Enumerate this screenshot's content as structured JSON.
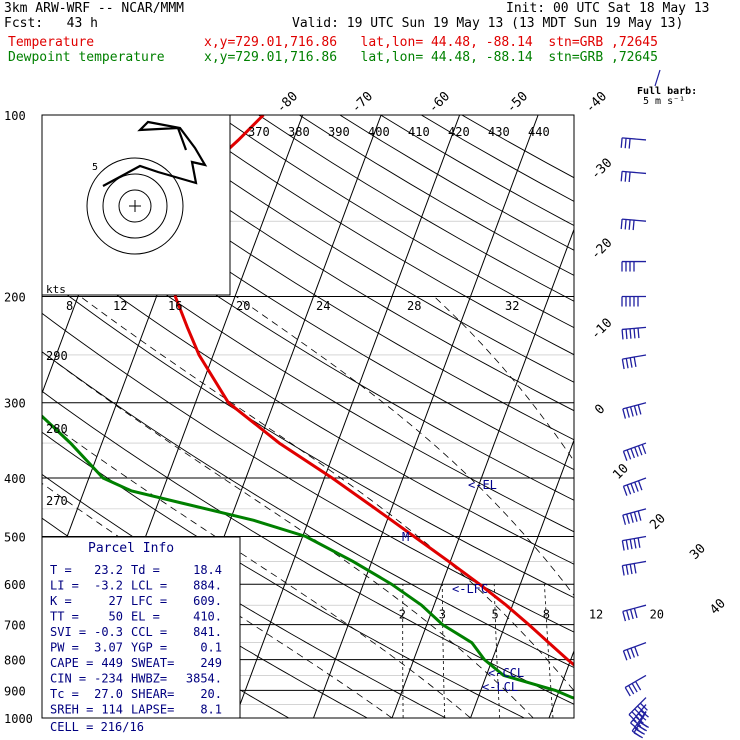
{
  "header": {
    "model": "3km ARW-WRF -- NCAR/MMM",
    "init": "Init: 00 UTC Sat 18 May 13",
    "fcst": "Fcst:   43 h",
    "valid": "Valid: 19 UTC Sun 19 May 13 (13 MDT Sun 19 May 13)",
    "temp_label": "Temperature",
    "dew_label": "Dewpoint temperature",
    "loc": "x,y=729.01,716.86   lat,lon= 44.48, -88.14  stn=GRB ,72645"
  },
  "colors": {
    "temperature": "#e00000",
    "dewpoint": "#008000",
    "wind": "#2020a0",
    "fill_info": "#000080"
  },
  "chart_data": {
    "type": "line",
    "title": "",
    "ylabel": "",
    "pressure_ticks": [
      100,
      200,
      300,
      400,
      500,
      600,
      700,
      800,
      900,
      1000
    ],
    "temp_axis_labels": [
      -80,
      -70,
      -60,
      -50,
      -40,
      -30,
      -20,
      -10,
      0,
      10,
      20,
      30,
      40
    ],
    "theta_labels": [
      370,
      380,
      390,
      400,
      410,
      420,
      430,
      440
    ],
    "wind_speed_labels": [
      8,
      12,
      16,
      20,
      24,
      28,
      32
    ],
    "wind_speed_unit": "kts",
    "theta_side_labels": [
      290,
      280,
      270
    ],
    "mixing_ratio_labels": [
      2,
      3,
      5,
      8,
      12,
      20
    ],
    "series": [
      {
        "name": "Temperature",
        "p": [
          1000,
          970,
          950,
          925,
          900,
          875,
          850,
          800,
          750,
          700,
          650,
          600,
          550,
          500,
          450,
          400,
          350,
          300,
          250,
          225,
          200,
          175,
          150,
          125,
          110,
          100
        ],
        "t": [
          23.2,
          21.0,
          19.0,
          17.2,
          15.6,
          14.2,
          12.8,
          9.6,
          6.4,
          3.0,
          -0.8,
          -5.2,
          -10.2,
          -15.8,
          -22.0,
          -29.0,
          -37.4,
          -45.8,
          -51.8,
          -54.6,
          -57.6,
          -58.6,
          -60.6,
          -60.0,
          -57.0,
          -55.0
        ]
      },
      {
        "name": "Dewpoint temperature",
        "p": [
          1000,
          980,
          950,
          925,
          900,
          850,
          800,
          750,
          700,
          650,
          600,
          550,
          500,
          470,
          440,
          420,
          400,
          350,
          300,
          250,
          220,
          200,
          175,
          150,
          125,
          100
        ],
        "t": [
          18.4,
          17.5,
          16.0,
          12.0,
          9.5,
          2.2,
          -1.0,
          -3.4,
          -8.0,
          -11.6,
          -16.4,
          -22.4,
          -29.6,
          -37.0,
          -47.0,
          -54.0,
          -58.2,
          -64.0,
          -71.4,
          -73.8,
          -78.4,
          -81.0,
          -78.0,
          -75.0,
          -72.0,
          -66.0
        ]
      }
    ],
    "annotations": [
      "<-EL",
      "<-LFC",
      "<-CCL",
      "<-LCL",
      "M"
    ]
  },
  "parcel_info": {
    "title": "Parcel Info",
    "rows": [
      [
        "T  =",
        "23.2",
        "Td =",
        "18.4"
      ],
      [
        "LI =",
        "-3.2",
        "LCL =",
        "884."
      ],
      [
        "K  =",
        "27",
        "LFC =",
        "609."
      ],
      [
        "TT =",
        "50",
        "EL  =",
        "410."
      ],
      [
        "SVI =",
        "-0.3",
        "CCL =",
        "841."
      ],
      [
        "PW =",
        "3.07",
        "YGP =",
        "0.1"
      ],
      [
        "CAPE =",
        "449",
        "SWEAT=",
        "249"
      ],
      [
        "CIN =",
        "-234",
        "HWBZ=",
        "3854."
      ],
      [
        "Tc =",
        "27.0",
        "SHEAR=",
        "20."
      ],
      [
        "SREH =",
        "114",
        "LAPSE=",
        "8.1"
      ]
    ],
    "cell": "CELL = 216/16"
  },
  "barb_legend": {
    "title": "Full barb:",
    "value": "5 m s⁻¹"
  },
  "winds": [
    {
      "p": 1000,
      "spd": 20,
      "dir": 210
    },
    {
      "p": 975,
      "spd": 20,
      "dir": 215
    },
    {
      "p": 950,
      "spd": 25,
      "dir": 220
    },
    {
      "p": 925,
      "spd": 25,
      "dir": 225
    },
    {
      "p": 850,
      "spd": 20,
      "dir": 240
    },
    {
      "p": 750,
      "spd": 20,
      "dir": 250
    },
    {
      "p": 650,
      "spd": 20,
      "dir": 255
    },
    {
      "p": 550,
      "spd": 20,
      "dir": 260
    },
    {
      "p": 500,
      "spd": 25,
      "dir": 260
    },
    {
      "p": 450,
      "spd": 25,
      "dir": 255
    },
    {
      "p": 400,
      "spd": 25,
      "dir": 250
    },
    {
      "p": 350,
      "spd": 30,
      "dir": 250
    },
    {
      "p": 300,
      "spd": 25,
      "dir": 255
    },
    {
      "p": 250,
      "spd": 20,
      "dir": 260
    },
    {
      "p": 225,
      "spd": 25,
      "dir": 265
    },
    {
      "p": 200,
      "spd": 25,
      "dir": 270
    },
    {
      "p": 175,
      "spd": 20,
      "dir": 270
    },
    {
      "p": 150,
      "spd": 20,
      "dir": 275
    },
    {
      "p": 125,
      "spd": 15,
      "dir": 275
    },
    {
      "p": 110,
      "spd": 15,
      "dir": 275
    }
  ]
}
